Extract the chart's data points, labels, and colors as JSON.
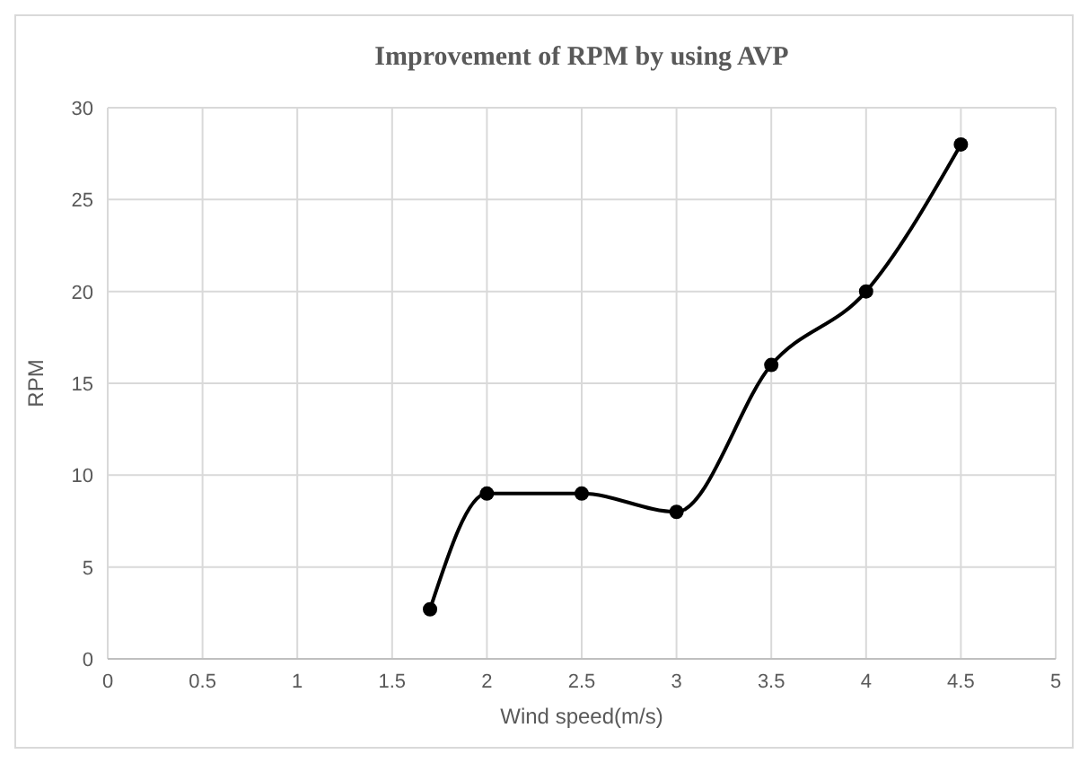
{
  "chart_data": {
    "type": "line",
    "title": "Improvement of RPM by using AVP",
    "xlabel": "Wind speed(m/s)",
    "ylabel": "RPM",
    "x": [
      1.7,
      2,
      2.5,
      3,
      3.5,
      4,
      4.5
    ],
    "series": [
      {
        "color": "#000000",
        "values": [
          2.7,
          9,
          9,
          8,
          16,
          20,
          28
        ]
      }
    ],
    "xlim": [
      0,
      5
    ],
    "xticks": [
      0,
      0.5,
      1,
      1.5,
      2,
      2.5,
      3,
      3.5,
      4,
      4.5,
      5
    ],
    "ylim": [
      0,
      30
    ],
    "yticks": [
      0,
      5,
      10,
      15,
      20,
      25,
      30
    ],
    "grid": true,
    "marker": "circle",
    "line_style": "solid"
  }
}
